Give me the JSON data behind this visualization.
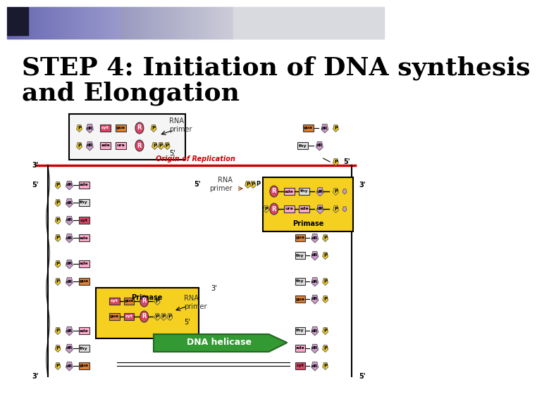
{
  "title_line1": "STEP 4: Initiation of DNA synthesis",
  "title_line2": "and Elongation",
  "title_fontsize": 26,
  "title_color": "#000000",
  "title_font": "DejaVu Serif",
  "bg_color": "#ffffff",
  "header_gradient_colors": [
    "#6699cc",
    "#aaaacc",
    "#ccccdd"
  ],
  "corner_square_color": "#1a1a2e",
  "diagram_image_placeholder": true,
  "colors": {
    "yellow": "#f5d020",
    "pink_purple": "#cc99cc",
    "pink_red": "#dd4466",
    "orange": "#e08030",
    "light_pink": "#ffaacc",
    "green": "#339933",
    "gray": "#aaaaaa",
    "dark_red": "#cc0000",
    "black": "#000000",
    "white": "#ffffff",
    "light_gray": "#dddddd",
    "tan": "#d4a050"
  },
  "labels": {
    "rna_primer": "RNA\nprimer",
    "origin": "Origin of Replication",
    "primase": "Primase",
    "dna_helicase": "DNA helicase",
    "five_prime": "5'",
    "three_prime": "3'"
  }
}
